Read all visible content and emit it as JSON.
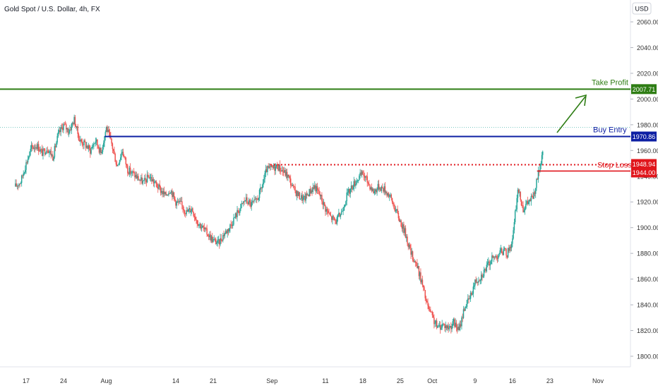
{
  "header": {
    "title": "Gold Spot / U.S. Dollar, 4h, FX"
  },
  "currency": "USD",
  "colors": {
    "up": "#26a69a",
    "down": "#ef5350",
    "take_profit": "#2e7d14",
    "buy_entry": "#0d1fa3",
    "stop_loss": "#e0161c",
    "grid": "#f3f4f6",
    "axis_text": "#333333"
  },
  "chart_data": {
    "type": "candlestick",
    "title": "Gold Spot / U.S. Dollar, 4h, FX",
    "ylim": [
      1795,
      2073
    ],
    "y_ticks": [
      1800,
      1820,
      1840,
      1860,
      1880,
      1900,
      1920,
      1940,
      1960,
      1980,
      2000,
      2020,
      2040,
      2060
    ],
    "y_tick_labels": [
      "1800.00",
      "1820.00",
      "1840.00",
      "1860.00",
      "1880.00",
      "1900.00",
      "1920.00",
      "1940.00",
      "1960.00",
      "1980.00",
      "2000.00",
      "2020.00",
      "2040.00",
      "2060.00"
    ],
    "x_ticks": [
      {
        "label": "17",
        "day": 0
      },
      {
        "label": "24",
        "day": 7
      },
      {
        "label": "Aug",
        "day": 15
      },
      {
        "label": "14",
        "day": 28
      },
      {
        "label": "21",
        "day": 35
      },
      {
        "label": "Sep",
        "day": 46
      },
      {
        "label": "11",
        "day": 56
      },
      {
        "label": "18",
        "day": 63
      },
      {
        "label": "25",
        "day": 70
      },
      {
        "label": "Oct",
        "day": 76
      },
      {
        "label": "9",
        "day": 84
      },
      {
        "label": "16",
        "day": 91
      },
      {
        "label": "23",
        "day": 98
      },
      {
        "label": "Nov",
        "day": 107
      }
    ],
    "price_path": [
      [
        -2,
        1932
      ],
      [
        -1,
        1936
      ],
      [
        0,
        1950
      ],
      [
        1,
        1962
      ],
      [
        2,
        1964
      ],
      [
        3,
        1958
      ],
      [
        4,
        1962
      ],
      [
        5,
        1955
      ],
      [
        6,
        1972
      ],
      [
        7,
        1980
      ],
      [
        8,
        1975
      ],
      [
        9,
        1984
      ],
      [
        10,
        1968
      ],
      [
        11,
        1965
      ],
      [
        12,
        1960
      ],
      [
        13,
        1968
      ],
      [
        14,
        1958
      ],
      [
        15,
        1978
      ],
      [
        16,
        1965
      ],
      [
        17,
        1948
      ],
      [
        18,
        1960
      ],
      [
        19,
        1945
      ],
      [
        20,
        1942
      ],
      [
        21,
        1938
      ],
      [
        22,
        1935
      ],
      [
        23,
        1940
      ],
      [
        24,
        1935
      ],
      [
        25,
        1930
      ],
      [
        26,
        1925
      ],
      [
        27,
        1930
      ],
      [
        28,
        1920
      ],
      [
        29,
        1918
      ],
      [
        30,
        1912
      ],
      [
        31,
        1915
      ],
      [
        32,
        1905
      ],
      [
        33,
        1900
      ],
      [
        34,
        1895
      ],
      [
        35,
        1890
      ],
      [
        36,
        1888
      ],
      [
        37,
        1895
      ],
      [
        38,
        1900
      ],
      [
        39,
        1908
      ],
      [
        40,
        1915
      ],
      [
        41,
        1922
      ],
      [
        42,
        1918
      ],
      [
        43,
        1920
      ],
      [
        44,
        1930
      ],
      [
        45,
        1945
      ],
      [
        46,
        1946
      ],
      [
        47,
        1948
      ],
      [
        48,
        1944
      ],
      [
        49,
        1940
      ],
      [
        50,
        1930
      ],
      [
        51,
        1925
      ],
      [
        52,
        1922
      ],
      [
        53,
        1928
      ],
      [
        54,
        1932
      ],
      [
        55,
        1925
      ],
      [
        56,
        1915
      ],
      [
        57,
        1908
      ],
      [
        58,
        1905
      ],
      [
        59,
        1912
      ],
      [
        60,
        1925
      ],
      [
        61,
        1932
      ],
      [
        62,
        1938
      ],
      [
        63,
        1942
      ],
      [
        64,
        1935
      ],
      [
        65,
        1928
      ],
      [
        66,
        1932
      ],
      [
        67,
        1930
      ],
      [
        68,
        1925
      ],
      [
        69,
        1915
      ],
      [
        70,
        1905
      ],
      [
        71,
        1895
      ],
      [
        72,
        1880
      ],
      [
        73,
        1872
      ],
      [
        74,
        1858
      ],
      [
        75,
        1840
      ],
      [
        76,
        1830
      ],
      [
        77,
        1822
      ],
      [
        78,
        1825
      ],
      [
        79,
        1822
      ],
      [
        80,
        1826
      ],
      [
        81,
        1820
      ],
      [
        82,
        1838
      ],
      [
        83,
        1845
      ],
      [
        84,
        1858
      ],
      [
        85,
        1862
      ],
      [
        86,
        1868
      ],
      [
        87,
        1875
      ],
      [
        88,
        1878
      ],
      [
        89,
        1882
      ],
      [
        90,
        1880
      ],
      [
        91,
        1890
      ],
      [
        92,
        1930
      ],
      [
        93,
        1915
      ],
      [
        94,
        1920
      ],
      [
        95,
        1925
      ],
      [
        96,
        1945
      ],
      [
        97,
        1962
      ],
      [
        98,
        1980
      ]
    ],
    "last_price_approx": 1978,
    "levels": [
      {
        "name": "Take Profit",
        "value": 2007.71,
        "value_label": "2007.71",
        "style": "solid",
        "color": "#2e7d14"
      },
      {
        "name": "Buy Entry",
        "value": 1970.86,
        "value_label": "1970.86",
        "style": "solid",
        "color": "#0d1fa3"
      },
      {
        "name": "Stop Loss",
        "value": 1948.94,
        "value_label": "1948.94",
        "style": "dotted",
        "color": "#e0161c"
      },
      {
        "name": "Stop Loss",
        "value": 1944.0,
        "value_label": "1944.00",
        "style": "solid",
        "color": "#e0161c"
      }
    ],
    "annotations": {
      "take_profit_label": "Take Profit",
      "buy_entry_label": "Buy Entry",
      "stop_loss_label": "Stop Loss"
    },
    "grid": false,
    "legend": "none"
  }
}
